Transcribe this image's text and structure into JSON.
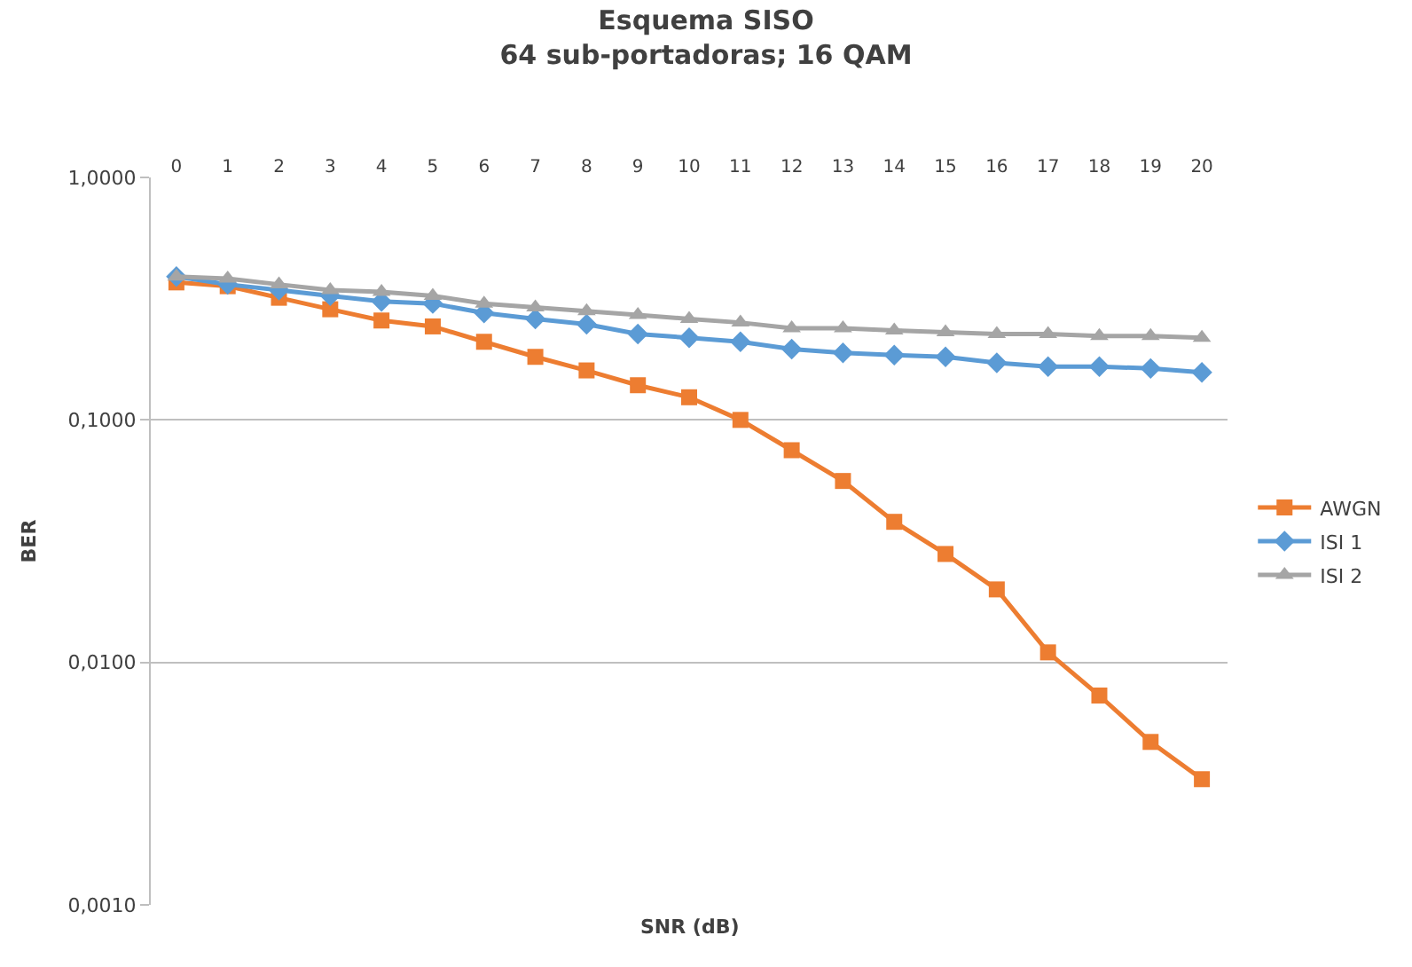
{
  "chart_data": {
    "type": "line",
    "title": "Esquema SISO",
    "subtitle": "64 sub-portadoras; 16 QAM",
    "xlabel": "SNR (dB)",
    "ylabel": "BER",
    "x": [
      0,
      1,
      2,
      3,
      4,
      5,
      6,
      7,
      8,
      9,
      10,
      11,
      12,
      13,
      14,
      15,
      16,
      17,
      18,
      19,
      20
    ],
    "xlim": [
      -0.5,
      20.5
    ],
    "xticks": [
      0,
      1,
      2,
      3,
      4,
      5,
      6,
      7,
      8,
      9,
      10,
      11,
      12,
      13,
      14,
      15,
      16,
      17,
      18,
      19,
      20
    ],
    "series": [
      {
        "name": "AWGN",
        "color": "#ed7d31",
        "marker": "square",
        "values": [
          0.369,
          0.356,
          0.319,
          0.286,
          0.257,
          0.243,
          0.21,
          0.182,
          0.16,
          0.139,
          0.124,
          0.1,
          0.075,
          0.056,
          0.038,
          0.028,
          0.02,
          0.011,
          0.0073,
          0.0047,
          0.0033
        ]
      },
      {
        "name": "ISI 1",
        "color": "#5b9bd5",
        "marker": "diamond",
        "values": [
          0.39,
          0.362,
          0.343,
          0.325,
          0.308,
          0.302,
          0.276,
          0.261,
          0.248,
          0.226,
          0.218,
          0.21,
          0.196,
          0.189,
          0.185,
          0.182,
          0.172,
          0.166,
          0.166,
          0.163,
          0.157
        ]
      },
      {
        "name": "ISI 2",
        "color": "#a5a5a5",
        "marker": "triangle",
        "values": [
          0.39,
          0.383,
          0.362,
          0.343,
          0.337,
          0.325,
          0.302,
          0.291,
          0.281,
          0.271,
          0.261,
          0.252,
          0.239,
          0.239,
          0.234,
          0.23,
          0.226,
          0.226,
          0.222,
          0.222,
          0.218
        ]
      }
    ],
    "log": "y",
    "ylim": [
      0.001,
      1
    ],
    "yticks": [
      {
        "value": 0.001,
        "label": "0,0010"
      },
      {
        "value": 0.01,
        "label": "0,0100"
      },
      {
        "value": 0.1,
        "label": "0,1000"
      },
      {
        "value": 1,
        "label": "1,0000"
      }
    ],
    "grid": "y",
    "legend": "right",
    "line_style": "solid"
  }
}
